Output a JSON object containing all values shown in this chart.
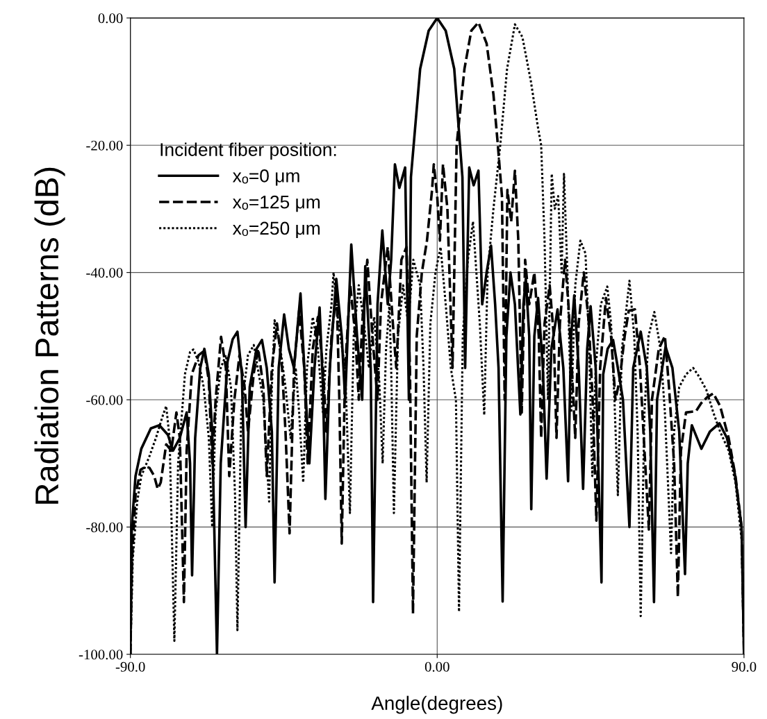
{
  "chart_data": {
    "type": "line",
    "xlabel": "Angle(degrees)",
    "ylabel": "Radiation Patterns (dB)",
    "legend_title": "Incident fiber position:",
    "legend": "top left",
    "grid": true,
    "xlim": [
      -90,
      90
    ],
    "xticks": [
      {
        "value": -90,
        "label": "-90.0"
      },
      {
        "value": 0,
        "label": "0.00"
      },
      {
        "value": 90,
        "label": "90.0"
      }
    ],
    "ylim": [
      -100,
      0
    ],
    "yticks": [
      {
        "value": -100,
        "label": "-100.00"
      },
      {
        "value": -80,
        "label": "-80.00"
      },
      {
        "value": -60,
        "label": "-60.00"
      },
      {
        "value": -40,
        "label": "-40.00"
      },
      {
        "value": -20,
        "label": "-20.00"
      },
      {
        "value": 0,
        "label": "0.00"
      }
    ],
    "series": [
      {
        "name": "xₒ=0 μm",
        "color": "#000000",
        "line_style": "solid",
        "x": [
          -90,
          -89.6,
          -88.5,
          -86.8,
          -84,
          -81.5,
          -79,
          -77.5,
          -75.5,
          -73.5,
          -72.5,
          -71.9,
          -71,
          -69.5,
          -68.3,
          -67,
          -66,
          -64.6,
          -63.5,
          -61.5,
          -60,
          -58.6,
          -57.3,
          -56.2,
          -55,
          -53,
          -51.4,
          -50,
          -48.5,
          -47.7,
          -46.5,
          -44.9,
          -43.5,
          -42,
          -40.1,
          -38.5,
          -37.5,
          -36,
          -34.5,
          -33.5,
          -32.8,
          -31.5,
          -29.6,
          -28,
          -27,
          -25.2,
          -23.5,
          -22,
          -21.1,
          -19.5,
          -18.8,
          -17.5,
          -16.1,
          -14.5,
          -13.5,
          -12.4,
          -11.1,
          -9.4,
          -8.3,
          -7.7,
          -5,
          -2.5,
          0,
          2.5,
          5,
          7.4,
          8.2,
          9.4,
          10.7,
          12.1,
          13.2,
          14.5,
          15.8,
          17,
          18,
          19.2,
          20.3,
          21.5,
          22.8,
          24.4,
          25.3,
          26,
          27,
          27.6,
          28.5,
          29.6,
          31,
          32.1,
          33.5,
          35.3,
          37,
          38.4,
          39.3,
          40.2,
          41.5,
          42.8,
          44,
          45,
          46.5,
          48.2,
          48.7,
          50,
          51.6,
          53,
          54.5,
          56.4,
          57.5,
          59.7,
          61.5,
          62.5,
          63.6,
          64.5,
          67,
          69,
          71,
          72.7,
          73.5,
          74.7,
          77.5,
          80,
          82.8,
          85,
          87.3,
          89.3,
          90
        ],
        "values": [
          -100,
          -80,
          -72,
          -67.7,
          -64.5,
          -64,
          -65.5,
          -68,
          -66,
          -62,
          -70,
          -87.6,
          -66,
          -55,
          -52,
          -56,
          -65,
          -100,
          -70,
          -54,
          -50.5,
          -49.3,
          -56,
          -80,
          -58,
          -52,
          -50.6,
          -55,
          -65,
          -88.7,
          -55,
          -46.6,
          -52,
          -55,
          -43.3,
          -60,
          -70,
          -55,
          -45.5,
          -58,
          -75.6,
          -55,
          -41,
          -50,
          -60,
          -35.6,
          -50,
          -60,
          -39,
          -55,
          -91.8,
          -45,
          -33.4,
          -45,
          -38,
          -23,
          -26.7,
          -23.5,
          -60,
          -25,
          -8,
          -2,
          0,
          -2,
          -8,
          -25,
          -55,
          -23.5,
          -26.3,
          -24,
          -45,
          -40,
          -35.8,
          -45,
          -55,
          -91.7,
          -50,
          -40,
          -45,
          -62.3,
          -45,
          -41,
          -50,
          -77.2,
          -50,
          -44,
          -55,
          -72.4,
          -52,
          -45.8,
          -55,
          -72.8,
          -50,
          -43.6,
          -55,
          -74,
          -52,
          -45.3,
          -55,
          -88.7,
          -56,
          -52,
          -50.6,
          -55,
          -60,
          -80,
          -55,
          -49.3,
          -55,
          -65,
          -91.8,
          -60,
          -51.7,
          -55,
          -65,
          -87.4,
          -70,
          -64,
          -67.7,
          -65,
          -63.7,
          -66,
          -71.6,
          -80,
          -100
        ]
      },
      {
        "name": "xₒ=125 μm",
        "color": "#000000",
        "line_style": "dashed",
        "x": [
          -90,
          -89.5,
          -88.5,
          -87,
          -85.5,
          -84.4,
          -83,
          -82,
          -81.1,
          -79.5,
          -78,
          -76.5,
          -75.5,
          -74.3,
          -73.5,
          -72,
          -70,
          -68.3,
          -67,
          -66,
          -65,
          -63.4,
          -62,
          -61,
          -59.5,
          -58,
          -56.5,
          -55.5,
          -53.8,
          -52.5,
          -51,
          -50,
          -48.5,
          -47,
          -45.5,
          -44.5,
          -43.3,
          -42,
          -40.5,
          -39,
          -38,
          -36.5,
          -35,
          -33.5,
          -32.5,
          -31,
          -29.5,
          -28.7,
          -28,
          -27,
          -25.5,
          -24,
          -23,
          -22,
          -20.5,
          -19,
          -17.5,
          -16.5,
          -14.5,
          -13,
          -12,
          -10.5,
          -9,
          -8,
          -7.1,
          -6,
          -4.5,
          -3,
          -1.5,
          -1,
          0,
          0.8,
          1.7,
          3,
          4.5,
          5.7,
          8,
          10,
          12.1,
          14.5,
          16.5,
          17.8,
          19,
          19.8,
          20.6,
          21.7,
          22.8,
          23.8,
          24.8,
          25.8,
          27,
          28.5,
          29.8,
          30.5,
          31.5,
          33,
          34.2,
          35,
          36,
          37.5,
          38.5,
          39.5,
          40.5,
          41.5,
          43,
          44.5,
          45.6,
          46.7,
          47.8,
          49.5,
          51,
          52.3,
          53.5,
          55,
          56.2,
          58,
          59.5,
          60.5,
          62.1,
          63,
          65,
          66.8,
          68,
          69.5,
          70.6,
          71.5,
          73,
          75.9,
          77.5,
          79.2,
          81,
          83,
          85.5,
          87.5,
          89.3,
          90
        ],
        "values": [
          -100,
          -85,
          -75,
          -71,
          -70.5,
          -70.7,
          -72,
          -74,
          -73,
          -67,
          -68,
          -62,
          -66,
          -91.8,
          -68,
          -56,
          -53,
          -52.3,
          -57,
          -70,
          -60,
          -50.1,
          -55,
          -72,
          -60,
          -53,
          -58,
          -65,
          -55.8,
          -52,
          -58,
          -72,
          -55,
          -48,
          -55,
          -65,
          -81,
          -55,
          -46,
          -55,
          -70,
          -52,
          -47,
          -55,
          -65,
          -50,
          -43,
          -60,
          -82.6,
          -55,
          -42,
          -50,
          -60,
          -48,
          -38,
          -50,
          -60,
          -45,
          -36,
          -48,
          -55,
          -38,
          -36,
          -55,
          -93.6,
          -50,
          -40,
          -35,
          -27,
          -23,
          -28,
          -35,
          -23,
          -30,
          -55,
          -20,
          -8,
          -2,
          -0.7,
          -4,
          -12,
          -20,
          -28,
          -60,
          -27,
          -32,
          -24,
          -35,
          -62,
          -38,
          -45,
          -40,
          -50,
          -66,
          -48,
          -42,
          -50,
          -66,
          -48,
          -38,
          -45,
          -55,
          -66,
          -48,
          -40,
          -48,
          -60,
          -79,
          -55,
          -44,
          -50,
          -60,
          -57,
          -50,
          -46,
          -45.8,
          -55,
          -65,
          -80.4,
          -60,
          -52,
          -50,
          -58,
          -70,
          -91,
          -68,
          -62,
          -61.8,
          -60.5,
          -59.6,
          -59,
          -61,
          -66,
          -72,
          -80,
          -100
        ]
      },
      {
        "name": "xₒ=250 μm",
        "color": "#000000",
        "line_style": "dotted",
        "x": [
          -90,
          -89.3,
          -88,
          -86.8,
          -84.5,
          -82.5,
          -80.5,
          -79.5,
          -78.5,
          -77.1,
          -76,
          -74,
          -72.5,
          -71.5,
          -70,
          -68.5,
          -67,
          -66,
          -65,
          -63.5,
          -62,
          -60.5,
          -59.3,
          -58.6,
          -57.5,
          -55.5,
          -53.8,
          -52,
          -51,
          -49.3,
          -48.5,
          -47.7,
          -46,
          -44.5,
          -43,
          -41.5,
          -40.5,
          -39.3,
          -38.2,
          -36.5,
          -35,
          -33.5,
          -32.5,
          -31,
          -30.4,
          -29,
          -27,
          -25.6,
          -24.5,
          -23,
          -21.5,
          -20,
          -18.5,
          -17,
          -16,
          -15,
          -14,
          -13.5,
          -12.7,
          -11.5,
          -10,
          -8.5,
          -7,
          -5,
          -4,
          -3.1,
          -2,
          -0.5,
          1,
          2.5,
          4,
          5.5,
          6.4,
          7.5,
          9,
          10.5,
          11.5,
          12.5,
          13.8,
          14.8,
          16.5,
          18.5,
          20.5,
          22.8,
          25,
          27.5,
          29.5,
          30.5,
          31.5,
          32.5,
          33.6,
          34.5,
          35.5,
          36.5,
          37.2,
          38.2,
          39.3,
          40.5,
          42,
          43.5,
          44.5,
          45.5,
          46.5,
          48,
          49.9,
          51,
          52,
          53,
          54.2,
          56.4,
          57.8,
          58.8,
          59.7,
          60.8,
          62,
          63.7,
          65.5,
          66.8,
          68.6,
          69.5,
          71,
          73,
          75.1,
          77,
          79,
          81,
          83,
          85.5,
          87.5,
          89.3,
          90
        ],
        "values": [
          -100,
          -85,
          -76,
          -72,
          -69,
          -66,
          -62.5,
          -61,
          -66,
          -97.9,
          -70,
          -56,
          -52.5,
          -52.1,
          -54,
          -58,
          -66,
          -80,
          -62,
          -55,
          -53,
          -58,
          -75,
          -96.2,
          -62,
          -53,
          -51.4,
          -57,
          -60,
          -76,
          -58,
          -47.5,
          -52,
          -58,
          -66,
          -55,
          -62,
          -73,
          -55,
          -47,
          -52,
          -62,
          -52,
          -45,
          -40,
          -48,
          -55,
          -77.8,
          -50,
          -42,
          -48,
          -55,
          -47,
          -57,
          -70,
          -52,
          -45,
          -55,
          -77.8,
          -50,
          -42,
          -48,
          -38,
          -42,
          -55,
          -73,
          -48,
          -40,
          -36,
          -45,
          -55,
          -60,
          -93.3,
          -50,
          -38,
          -32,
          -40,
          -48,
          -62.4,
          -40,
          -30,
          -20,
          -8,
          -1,
          -3,
          -10,
          -17,
          -20,
          -35,
          -60,
          -24.5,
          -30,
          -28,
          -40,
          -24.5,
          -40,
          -62,
          -42,
          -35,
          -37,
          -50,
          -72,
          -55,
          -45,
          -42.2,
          -48,
          -60,
          -75,
          -52,
          -41.3,
          -50,
          -65,
          -94,
          -62,
          -50,
          -46.2,
          -52,
          -62,
          -84.1,
          -65,
          -58,
          -56,
          -55,
          -56.5,
          -58.5,
          -62,
          -65,
          -68,
          -73,
          -82,
          -100
        ]
      }
    ]
  }
}
